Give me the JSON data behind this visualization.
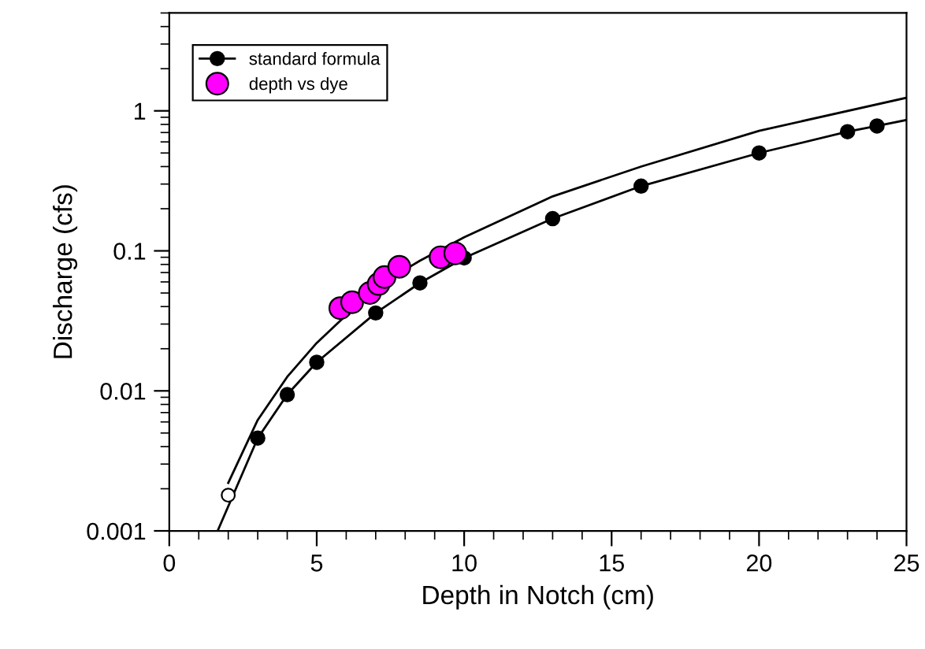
{
  "chart_data": {
    "type": "line",
    "xlabel": "Depth in Notch (cm)",
    "ylabel": "Discharge (cfs)",
    "xlim": [
      0,
      25
    ],
    "xticks": [
      0,
      5,
      10,
      15,
      20,
      25
    ],
    "ylim": [
      0.001,
      5
    ],
    "yticks": [
      0.001,
      0.01,
      0.1,
      1
    ],
    "log": "y",
    "grid": false,
    "legend": "top left",
    "series": [
      {
        "name": "standard formula",
        "marker": "circle",
        "color": "#000000",
        "x": [
          3,
          4,
          5,
          7,
          8.5,
          10,
          13,
          16,
          20,
          23,
          24
        ],
        "values": [
          0.0046,
          0.0094,
          0.016,
          0.036,
          0.059,
          0.089,
          0.17,
          0.29,
          0.5,
          0.71,
          0.78
        ]
      },
      {
        "name": "depth vs dye",
        "type": "scatter",
        "marker": "circle",
        "color": "#ff00ff",
        "x": [
          5.8,
          6.2,
          6.8,
          7.1,
          7.3,
          7.8,
          9.2,
          9.7
        ],
        "values": [
          0.039,
          0.043,
          0.05,
          0.058,
          0.065,
          0.077,
          0.09,
          0.096
        ]
      },
      {
        "marker": "none",
        "color": "#000000",
        "x": [
          1.64,
          3
        ],
        "values": [
          0.001,
          0.0046
        ]
      },
      {
        "marker": "none",
        "color": "#000000",
        "x": [
          24,
          25
        ],
        "values": [
          0.78,
          0.86
        ]
      },
      {
        "marker": "none",
        "color": "#000000",
        "x": [
          2,
          3,
          4,
          5,
          7,
          8.5,
          10,
          13,
          16,
          20,
          25
        ],
        "values": [
          0.0022,
          0.0062,
          0.0126,
          0.022,
          0.055,
          0.085,
          0.125,
          0.245,
          0.4,
          0.72,
          1.24
        ]
      },
      {
        "type": "scatter",
        "marker": "circle",
        "color": "#ffffff",
        "x": [
          2
        ],
        "values": [
          0.0018
        ]
      }
    ]
  }
}
